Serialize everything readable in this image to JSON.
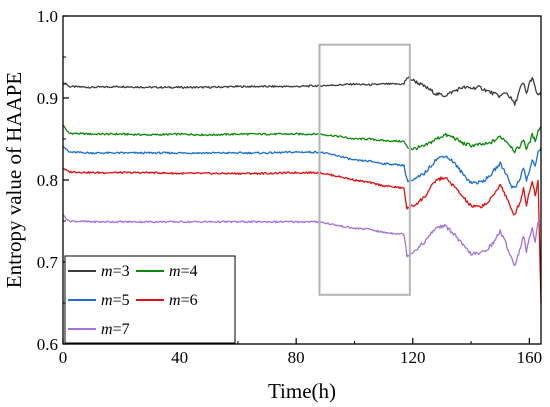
{
  "chart_data": {
    "type": "line",
    "title": "",
    "xlabel": "Time(h)",
    "ylabel": "Entropy value of HAAPE",
    "xlim": [
      0,
      164
    ],
    "ylim": [
      0.6,
      1.0
    ],
    "xticks": [
      "0",
      "40",
      "80",
      "120",
      "160"
    ],
    "yticks": [
      "0.6",
      "0.7",
      "0.8",
      "0.9",
      "1.0"
    ],
    "grid": false,
    "legend_position": "bottom-left",
    "highlight_box": {
      "x": [
        88,
        119
      ],
      "y": [
        0.66,
        0.965
      ]
    },
    "series": [
      {
        "name": "m=3",
        "label_var": "m",
        "label_val": "=3",
        "color": "#3c3c3c",
        "points": [
          [
            0,
            0.917
          ],
          [
            1,
            0.918
          ],
          [
            2,
            0.914
          ],
          [
            10,
            0.913
          ],
          [
            20,
            0.914
          ],
          [
            30,
            0.913
          ],
          [
            40,
            0.913
          ],
          [
            50,
            0.913
          ],
          [
            60,
            0.914
          ],
          [
            70,
            0.914
          ],
          [
            80,
            0.914
          ],
          [
            88,
            0.915
          ],
          [
            95,
            0.916
          ],
          [
            100,
            0.917
          ],
          [
            105,
            0.916
          ],
          [
            110,
            0.917
          ],
          [
            117,
            0.917
          ],
          [
            118,
            0.925
          ],
          [
            120,
            0.922
          ],
          [
            122,
            0.918
          ],
          [
            125,
            0.912
          ],
          [
            128,
            0.905
          ],
          [
            131,
            0.903
          ],
          [
            134,
            0.908
          ],
          [
            137,
            0.913
          ],
          [
            140,
            0.912
          ],
          [
            143,
            0.913
          ],
          [
            146,
            0.908
          ],
          [
            148,
            0.905
          ],
          [
            150,
            0.902
          ],
          [
            152,
            0.907
          ],
          [
            154,
            0.898
          ],
          [
            155,
            0.892
          ],
          [
            157,
            0.913
          ],
          [
            158,
            0.918
          ],
          [
            159,
            0.905
          ],
          [
            160,
            0.918
          ],
          [
            161,
            0.925
          ],
          [
            162,
            0.912
          ],
          [
            163,
            0.902
          ],
          [
            164,
            0.908
          ]
        ]
      },
      {
        "name": "m=4",
        "label_var": "m",
        "label_val": "=4",
        "color": "#0a8a0a",
        "points": [
          [
            0,
            0.867
          ],
          [
            1,
            0.862
          ],
          [
            2,
            0.857
          ],
          [
            10,
            0.856
          ],
          [
            20,
            0.856
          ],
          [
            30,
            0.855
          ],
          [
            40,
            0.856
          ],
          [
            50,
            0.855
          ],
          [
            60,
            0.856
          ],
          [
            70,
            0.856
          ],
          [
            80,
            0.856
          ],
          [
            88,
            0.856
          ],
          [
            95,
            0.853
          ],
          [
            100,
            0.85
          ],
          [
            105,
            0.85
          ],
          [
            110,
            0.848
          ],
          [
            117,
            0.847
          ],
          [
            118,
            0.84
          ],
          [
            120,
            0.838
          ],
          [
            124,
            0.841
          ],
          [
            128,
            0.85
          ],
          [
            131,
            0.855
          ],
          [
            134,
            0.852
          ],
          [
            137,
            0.845
          ],
          [
            140,
            0.842
          ],
          [
            143,
            0.843
          ],
          [
            146,
            0.844
          ],
          [
            148,
            0.848
          ],
          [
            150,
            0.853
          ],
          [
            152,
            0.848
          ],
          [
            154,
            0.84
          ],
          [
            155,
            0.835
          ],
          [
            157,
            0.842
          ],
          [
            158,
            0.85
          ],
          [
            159,
            0.838
          ],
          [
            160,
            0.845
          ],
          [
            161,
            0.855
          ],
          [
            162,
            0.848
          ],
          [
            163,
            0.86
          ],
          [
            164,
            0.865
          ]
        ]
      },
      {
        "name": "m=5",
        "label_var": "m",
        "label_val": "=5",
        "color": "#1a6fd6",
        "points": [
          [
            0,
            0.842
          ],
          [
            1,
            0.838
          ],
          [
            2,
            0.834
          ],
          [
            10,
            0.833
          ],
          [
            20,
            0.833
          ],
          [
            30,
            0.833
          ],
          [
            40,
            0.833
          ],
          [
            50,
            0.833
          ],
          [
            60,
            0.833
          ],
          [
            70,
            0.833
          ],
          [
            80,
            0.834
          ],
          [
            88,
            0.834
          ],
          [
            95,
            0.829
          ],
          [
            100,
            0.824
          ],
          [
            105,
            0.823
          ],
          [
            110,
            0.82
          ],
          [
            117,
            0.818
          ],
          [
            118,
            0.8
          ],
          [
            120,
            0.799
          ],
          [
            124,
            0.808
          ],
          [
            128,
            0.825
          ],
          [
            131,
            0.83
          ],
          [
            134,
            0.822
          ],
          [
            137,
            0.808
          ],
          [
            140,
            0.797
          ],
          [
            143,
            0.797
          ],
          [
            146,
            0.803
          ],
          [
            148,
            0.812
          ],
          [
            150,
            0.82
          ],
          [
            152,
            0.808
          ],
          [
            154,
            0.792
          ],
          [
            155,
            0.79
          ],
          [
            157,
            0.804
          ],
          [
            158,
            0.815
          ],
          [
            159,
            0.8
          ],
          [
            160,
            0.81
          ],
          [
            161,
            0.825
          ],
          [
            162,
            0.815
          ],
          [
            163,
            0.835
          ],
          [
            164,
            0.84
          ]
        ]
      },
      {
        "name": "m=6",
        "label_var": "m",
        "label_val": "=6",
        "color": "#e01010",
        "points": [
          [
            0,
            0.815
          ],
          [
            1,
            0.812
          ],
          [
            2,
            0.81
          ],
          [
            10,
            0.809
          ],
          [
            20,
            0.809
          ],
          [
            30,
            0.809
          ],
          [
            40,
            0.808
          ],
          [
            50,
            0.808
          ],
          [
            60,
            0.808
          ],
          [
            70,
            0.808
          ],
          [
            80,
            0.809
          ],
          [
            88,
            0.809
          ],
          [
            95,
            0.804
          ],
          [
            100,
            0.8
          ],
          [
            105,
            0.797
          ],
          [
            110,
            0.793
          ],
          [
            117,
            0.79
          ],
          [
            118,
            0.765
          ],
          [
            120,
            0.768
          ],
          [
            124,
            0.779
          ],
          [
            128,
            0.8
          ],
          [
            131,
            0.803
          ],
          [
            134,
            0.793
          ],
          [
            137,
            0.78
          ],
          [
            140,
            0.768
          ],
          [
            143,
            0.767
          ],
          [
            146,
            0.773
          ],
          [
            148,
            0.783
          ],
          [
            150,
            0.795
          ],
          [
            152,
            0.78
          ],
          [
            154,
            0.762
          ],
          [
            155,
            0.758
          ],
          [
            157,
            0.775
          ],
          [
            158,
            0.79
          ],
          [
            159,
            0.77
          ],
          [
            160,
            0.785
          ],
          [
            161,
            0.8
          ],
          [
            162,
            0.78
          ],
          [
            163,
            0.8
          ],
          [
            164,
            0.65
          ]
        ]
      },
      {
        "name": "m=7",
        "label_var": "m",
        "label_val": "=7",
        "color": "#a272e0",
        "points": [
          [
            0,
            0.757
          ],
          [
            1,
            0.754
          ],
          [
            2,
            0.75
          ],
          [
            10,
            0.749
          ],
          [
            20,
            0.749
          ],
          [
            30,
            0.749
          ],
          [
            40,
            0.749
          ],
          [
            50,
            0.749
          ],
          [
            60,
            0.749
          ],
          [
            70,
            0.749
          ],
          [
            80,
            0.749
          ],
          [
            88,
            0.749
          ],
          [
            95,
            0.744
          ],
          [
            100,
            0.741
          ],
          [
            105,
            0.74
          ],
          [
            110,
            0.736
          ],
          [
            117,
            0.734
          ],
          [
            118,
            0.708
          ],
          [
            120,
            0.712
          ],
          [
            124,
            0.724
          ],
          [
            128,
            0.742
          ],
          [
            131,
            0.744
          ],
          [
            134,
            0.735
          ],
          [
            137,
            0.721
          ],
          [
            140,
            0.71
          ],
          [
            143,
            0.71
          ],
          [
            146,
            0.717
          ],
          [
            148,
            0.725
          ],
          [
            150,
            0.738
          ],
          [
            152,
            0.722
          ],
          [
            154,
            0.704
          ],
          [
            155,
            0.696
          ],
          [
            157,
            0.718
          ],
          [
            158,
            0.733
          ],
          [
            159,
            0.712
          ],
          [
            160,
            0.728
          ],
          [
            161,
            0.743
          ],
          [
            162,
            0.725
          ],
          [
            163,
            0.748
          ],
          [
            164,
            0.745
          ]
        ]
      }
    ]
  }
}
